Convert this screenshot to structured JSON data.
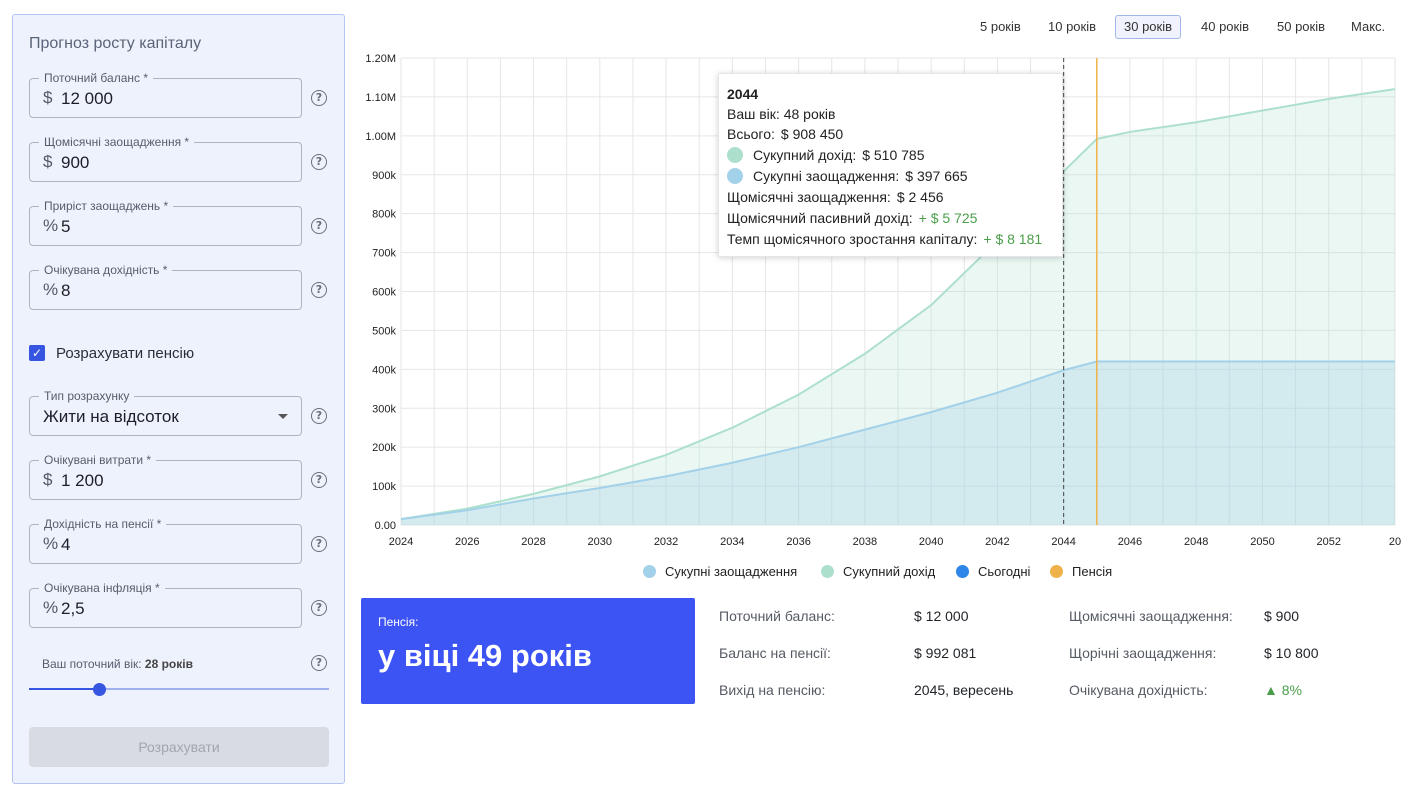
{
  "form": {
    "title": "Прогноз росту капіталу",
    "fields": [
      {
        "label": "Поточний баланс *",
        "prefix": "$",
        "value": "12 000"
      },
      {
        "label": "Щомісячні заощадження *",
        "prefix": "$",
        "value": "900"
      },
      {
        "label": "Приріст заощаджень *",
        "prefix": "%",
        "value": "5"
      },
      {
        "label": "Очікувана дохідність *",
        "prefix": "%",
        "value": "8"
      }
    ],
    "pension_checkbox": {
      "label": "Розрахувати пенсію",
      "checked": true
    },
    "calc_type": {
      "label": "Тип розрахунку",
      "value": "Жити на відсоток"
    },
    "pension_fields": [
      {
        "label": "Очікувані витрати *",
        "prefix": "$",
        "value": "1 200"
      },
      {
        "label": "Дохідність на пенсії *",
        "prefix": "%",
        "value": "4"
      },
      {
        "label": "Очікувана інфляція *",
        "prefix": "%",
        "value": "2,5"
      }
    ],
    "age_label": "Ваш поточний вік:",
    "age_value": "28 років",
    "age_slider_fraction": 0.23,
    "calculate_button": "Розрахувати",
    "help_glyph": "?"
  },
  "tabs": [
    {
      "label": "5 років",
      "active": false
    },
    {
      "label": "10 років",
      "active": false
    },
    {
      "label": "30 років",
      "active": true
    },
    {
      "label": "40 років",
      "active": false
    },
    {
      "label": "50 років",
      "active": false
    },
    {
      "label": "Макс.",
      "active": false
    }
  ],
  "tooltip": {
    "year": "2044",
    "age": "Ваш вік: 48 років",
    "total_label": "Всього:",
    "total_value": "$ 908 450",
    "income_label": "Сукупний дохід:",
    "income_value": "$ 510 785",
    "savings_label": "Сукупні заощадження:",
    "savings_value": "$ 397 665",
    "monthly_savings_label": "Щомісячні заощадження:",
    "monthly_savings_value": "$ 2 456",
    "passive_label": "Щомісячний пасивний дохід:",
    "passive_value": "+ $ 5 725",
    "growth_label": "Темп щомісячного зростання капіталу:",
    "growth_value": "+ $ 8 181"
  },
  "legend": [
    {
      "label": "Сукупні заощадження",
      "color": "#a3d1e9"
    },
    {
      "label": "Сукупний дохід",
      "color": "#ade0cc"
    },
    {
      "label": "Сьогодні",
      "color": "#2e86e8"
    },
    {
      "label": "Пенсія",
      "color": "#efb24a"
    }
  ],
  "summary": {
    "card_small": "Пенсія:",
    "card_big": "у віці 49 років",
    "col1": [
      {
        "label": "Поточний баланс:",
        "value": "$ 12 000"
      },
      {
        "label": "Баланс на пенсії:",
        "value": "$ 992 081"
      },
      {
        "label": "Вихід на пенсію:",
        "value": "2045, вересень"
      }
    ],
    "col2": [
      {
        "label": "Щомісячні заощадження:",
        "value": "$ 900"
      },
      {
        "label": "Щорічні заощадження:",
        "value": "$ 10 800"
      },
      {
        "label": "Очікувана дохідність:",
        "value": "▲ 8%"
      }
    ]
  },
  "chart_data": {
    "type": "area",
    "x_ticks": [
      "2024",
      "2026",
      "2028",
      "2030",
      "2032",
      "2034",
      "2036",
      "2038",
      "2040",
      "2042",
      "2044",
      "2046",
      "2048",
      "2050",
      "2052",
      "20"
    ],
    "y_ticks": [
      "0.00",
      "100k",
      "200k",
      "300k",
      "400k",
      "500k",
      "600k",
      "700k",
      "800k",
      "900k",
      "1.00M",
      "1.10M",
      "1.20M"
    ],
    "ylim": [
      0,
      1200000
    ],
    "xlim": [
      2024,
      2054
    ],
    "today_marker": 2044,
    "pension_marker": 2045,
    "series": [
      {
        "name": "Сукупні заощадження",
        "color": "#a3d1e9",
        "x": [
          2024,
          2026,
          2028,
          2030,
          2032,
          2034,
          2036,
          2038,
          2040,
          2042,
          2044,
          2045,
          2046,
          2048,
          2050,
          2052,
          2054
        ],
        "values": [
          15000,
          38000,
          68000,
          95000,
          125000,
          160000,
          200000,
          245000,
          290000,
          340000,
          397665,
          420000,
          420000,
          420000,
          420000,
          420000,
          420000
        ]
      },
      {
        "name": "Сукупний дохід",
        "color": "#ade0cc",
        "x": [
          2024,
          2026,
          2028,
          2030,
          2032,
          2034,
          2036,
          2038,
          2040,
          2042,
          2044,
          2045,
          2046,
          2048,
          2050,
          2052,
          2054
        ],
        "values": [
          15000,
          42000,
          80000,
          125000,
          180000,
          250000,
          335000,
          440000,
          565000,
          730000,
          908450,
          992081,
          1010000,
          1035000,
          1065000,
          1095000,
          1120000
        ]
      }
    ]
  }
}
